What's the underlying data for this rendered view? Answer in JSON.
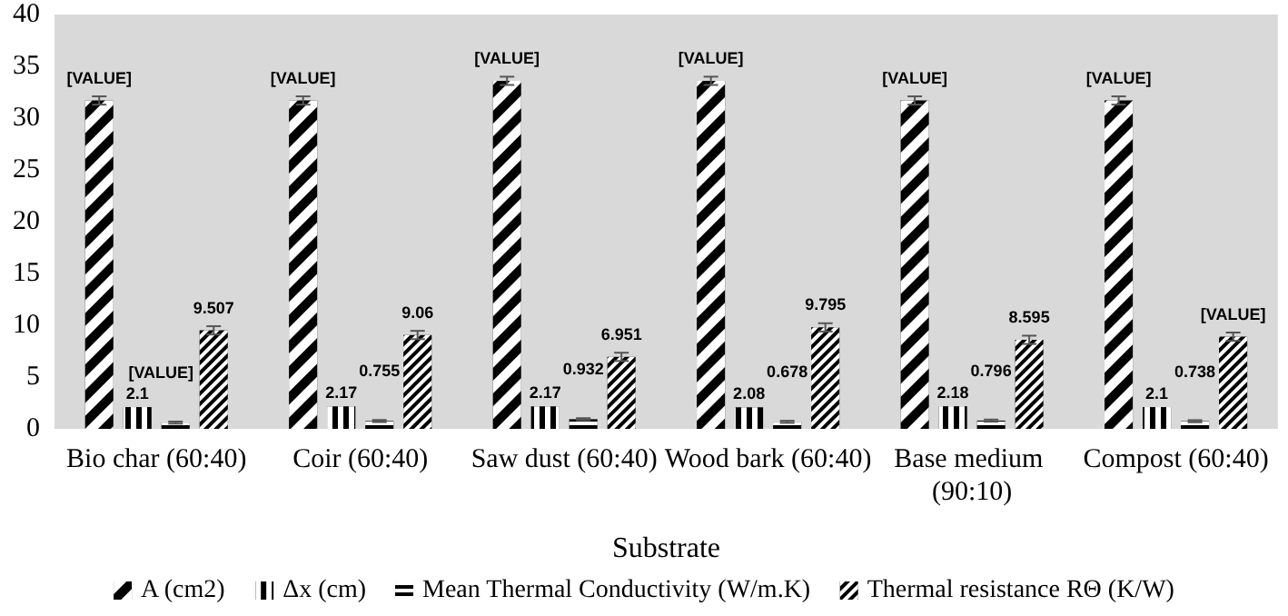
{
  "chart_data": {
    "type": "bar",
    "xlabel": "Substrate",
    "categories": [
      "Bio char (60:40)",
      "Coir (60:40)",
      "Saw dust (60:40)",
      "Wood bark (60:40)",
      "Base medium (90:10)",
      "Compost (60:40)"
    ],
    "series": [
      {
        "name": "A (cm2)",
        "color": "#000000",
        "values": [
          31.7,
          31.7,
          33.6,
          33.6,
          31.7,
          31.7
        ],
        "errors": [
          0.4,
          0.4,
          0.4,
          0.4,
          0.4,
          0.4
        ],
        "value_labels": [
          "[VALUE]",
          "[VALUE]",
          "[VALUE]",
          "[VALUE]",
          "[VALUE]",
          "[VALUE]"
        ]
      },
      {
        "name": "Δx (cm)",
        "color": "#000000",
        "values": [
          2.1,
          2.17,
          2.17,
          2.08,
          2.18,
          2.1
        ],
        "value_labels": [
          "2.1",
          "2.17",
          "2.17",
          "2.08",
          "2.18",
          "2.1"
        ]
      },
      {
        "name": "Mean Thermal Conductivity (W/m.K)",
        "color": "#000000",
        "values": [
          0.6,
          0.755,
          0.932,
          0.678,
          0.796,
          0.738
        ],
        "errors": [
          0.1,
          0.1,
          0.1,
          0.1,
          0.1,
          0.1
        ],
        "value_labels": [
          "[VALUE]",
          "0.755",
          "0.932",
          "0.678",
          "0.796",
          "0.738"
        ]
      },
      {
        "name": "Thermal resistance RΘ (K/W)",
        "color": "#000000",
        "values": [
          9.507,
          9.06,
          6.951,
          9.795,
          8.595,
          8.9
        ],
        "errors": [
          0.4,
          0.4,
          0.4,
          0.4,
          0.4,
          0.4
        ],
        "value_labels": [
          "9.507",
          "9.06",
          "6.951",
          "9.795",
          "8.595",
          "[VALUE]"
        ]
      }
    ],
    "ylim": [
      0,
      40
    ],
    "yticks": [
      0,
      5,
      10,
      15,
      20,
      25,
      30,
      35,
      40
    ],
    "grid": false,
    "legend": "bottom"
  }
}
